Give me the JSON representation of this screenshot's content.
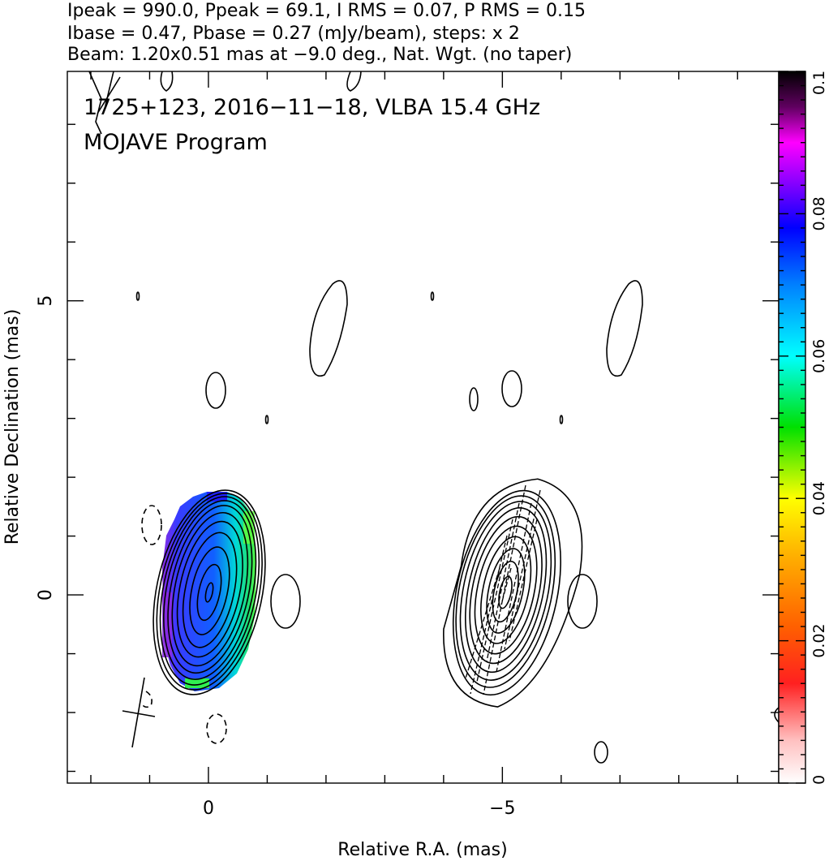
{
  "header": {
    "line1": "Ipeak = 990.0, Ppeak = 69.1, I RMS = 0.07, P RMS = 0.15",
    "line2": "Ibase = 0.47, Pbase = 0.27 (mJy/beam), steps: x 2",
    "line3": "Beam: 1.20x0.51 mas at −9.0 deg., Nat. Wgt. (no taper)"
  },
  "panel": {
    "title_line1": "1725+123, 2016−11−18, VLBA 15.4 GHz",
    "title_line2": "MOJAVE Program"
  },
  "chart_data": {
    "type": "heatmap",
    "description_type": "VLBI total-intensity contour map with fractional polarization color overlay (left) and contours with EVPA ticks (right)",
    "xlabel": "Relative R.A. (mas)",
    "ylabel": "Relative Declination (mas)",
    "xlim": [
      2.4,
      -9.7
    ],
    "ylim": [
      -3.2,
      8.9
    ],
    "x_tick_labels": [
      {
        "value": 0,
        "label": "0"
      },
      {
        "value": -5,
        "label": "−5"
      }
    ],
    "y_tick_labels": [
      {
        "value": 0,
        "label": "0"
      },
      {
        "value": 5,
        "label": "5"
      }
    ],
    "peak_intensity_mJy_per_beam": 990.0,
    "peak_polarized_mJy_per_beam": 69.1,
    "intensity_rms": 0.07,
    "polarized_rms": 0.15,
    "base_contour_intensity": 0.47,
    "base_contour_polarized": 0.27,
    "contour_step_factor": 2,
    "beam": {
      "major_mas": 1.2,
      "minor_mas": 0.51,
      "pa_deg": -9.0
    },
    "weighting": "Nat. Wgt. (no taper)",
    "colorbar": {
      "min": 0,
      "max": 0.1,
      "tick_labels": [
        {
          "value": 0,
          "label": "0"
        },
        {
          "value": 0.02,
          "label": "0.02"
        },
        {
          "value": 0.04,
          "label": "0.04"
        },
        {
          "value": 0.06,
          "label": "0.06"
        },
        {
          "value": 0.08,
          "label": "0.08"
        },
        {
          "value": 0.1,
          "label": "0.1"
        }
      ],
      "colors_low_to_high": [
        "#ffffff",
        "#ff0000",
        "#ff8000",
        "#ffff00",
        "#00ff00",
        "#00ffff",
        "#0000ff",
        "#ff00ff",
        "#000000"
      ]
    },
    "fractional_polarization_core": 0.075
  }
}
